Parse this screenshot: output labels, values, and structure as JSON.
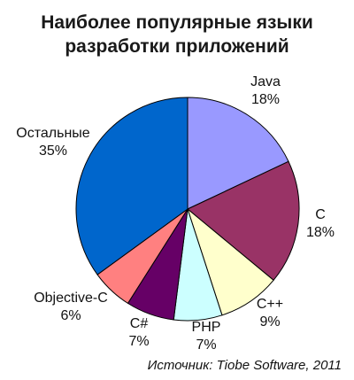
{
  "title_lines": [
    "Наиболее популярные языки",
    "разработки приложений"
  ],
  "source": "Источник: Tiobe Software, 2011",
  "chart_data": {
    "type": "pie",
    "title": "Наиболее популярные языки разработки приложений",
    "start": "12 o'clock",
    "direction": "clockwise",
    "slices": [
      {
        "label": "Java",
        "value": 18,
        "value_label": "18%",
        "color": "#9999ff"
      },
      {
        "label": "C",
        "value": 18,
        "value_label": "18%",
        "color": "#993366"
      },
      {
        "label": "C++",
        "value": 9,
        "value_label": "9%",
        "color": "#ffffcc"
      },
      {
        "label": "PHP",
        "value": 7,
        "value_label": "7%",
        "color": "#ccffff"
      },
      {
        "label": "C#",
        "value": 7,
        "value_label": "7%",
        "color": "#660066"
      },
      {
        "label": "Objective-C",
        "value": 6,
        "value_label": "6%",
        "color": "#ff8080"
      },
      {
        "label": "Остальные",
        "value": 35,
        "value_label": "35%",
        "color": "#0066cc"
      }
    ]
  }
}
